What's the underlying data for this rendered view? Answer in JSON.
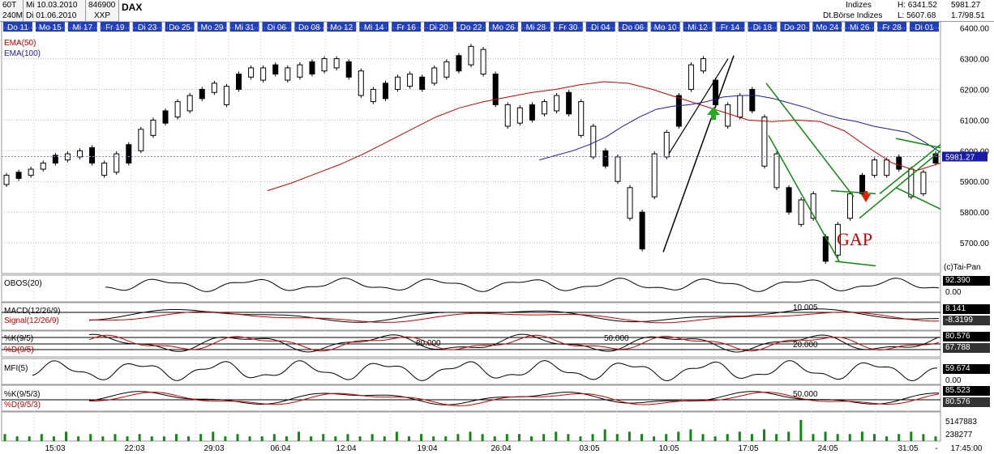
{
  "header": {
    "timeframe_1": "60T",
    "date_1": "Mi 10.03.2010",
    "code": "846900",
    "timeframe_2": "240M",
    "date_2": "Di 01.06.2010",
    "exchange": "XXP",
    "symbol": "DAX",
    "indices_label": "Indizes",
    "exchange_name": "Dt.Börse Indizes",
    "high": "H: 6341.52",
    "low": "L: 5607.68",
    "last": "5981.27",
    "change": "1.7/98.51"
  },
  "date_tabs": [
    "Do 11",
    "Mo 15",
    "Mi 17",
    "Fr 19",
    "Di 23",
    "Do 25",
    "Mo 29",
    "Mi 31",
    "Di 06",
    "Do 08",
    "Mo 12",
    "Mi 14",
    "Fr 16",
    "Di 20",
    "Do 22",
    "Mo 26",
    "Mi 28",
    "Fr 30",
    "Di 04",
    "Do 06",
    "Mo 10",
    "Mi 12",
    "Fr 14",
    "Di 18",
    "Do 20",
    "Mo 24",
    "Mi 26",
    "Fr 28",
    "Di 01"
  ],
  "x_axis_labels": [
    "15:03",
    "22:03",
    "29:03",
    "06:04",
    "12:04",
    "19:04",
    "26:04",
    "03:05",
    "10:05",
    "17:05",
    "24:05",
    "31:05",
    "-",
    "17:45:00"
  ],
  "copyright": "(c)Tai-Pan",
  "annotation": "GAP",
  "colors": {
    "candle": "#000000",
    "ema50": "#cc0000",
    "ema100": "#1a1aaa",
    "channel": "#118811",
    "tab_bg": "#1f3fbf",
    "volume": "#118811"
  },
  "legend": {
    "ema50": "EMA(50)",
    "ema100": "EMA(100)"
  },
  "indicators": [
    {
      "name": "OBOS(20)",
      "values": [
        "92.390",
        "0.00"
      ]
    },
    {
      "name": "MACD(12/26/9)",
      "name2": "Signal(12/26/9)",
      "level": "10.005",
      "values": [
        "8.141",
        "-8.3199"
      ]
    },
    {
      "name": "%K(9/5)",
      "name2": "%D(9/5)",
      "levels": [
        "80.000",
        "50.000",
        "20.000"
      ],
      "values": [
        "80.576",
        "67.788"
      ]
    },
    {
      "name": "MFI(5)",
      "values": [
        "59.674",
        "0.00"
      ]
    },
    {
      "name": "%K(9/5/3)",
      "name2": "%D(9/5/3)",
      "level": "50.000",
      "values": [
        "85.523",
        "80.576"
      ]
    },
    {
      "name": "Volume",
      "values": [
        "5147883",
        "238277"
      ]
    }
  ],
  "chart_data": {
    "type": "candlestick",
    "title": "DAX",
    "y_ticks": [
      5700,
      5800,
      5900,
      6000,
      6100,
      6200,
      6300,
      6400
    ],
    "ylim": [
      5600,
      6420
    ],
    "ylabel": "",
    "series": [
      {
        "name": "EMA(50)",
        "values": [
          5870,
          5895,
          5925,
          5955,
          5990,
          6030,
          6070,
          6110,
          6140,
          6160,
          6175,
          6190,
          6200,
          6215,
          6225,
          6220,
          6200,
          6175,
          6150,
          6125,
          6100,
          6095,
          6100,
          6095,
          6065,
          6010,
          5960,
          5935,
          5960
        ]
      },
      {
        "name": "EMA(100)",
        "values": [
          5970,
          5985,
          6000,
          6020,
          6045,
          6080,
          6110,
          6135,
          6145,
          6150,
          6160,
          6175,
          6180,
          6180,
          6170,
          6155,
          6140,
          6120,
          6105,
          6095,
          6080,
          6070,
          6060,
          6030,
          5995
        ]
      }
    ],
    "candles": [
      [
        5890,
        5920
      ],
      [
        5910,
        5930
      ],
      [
        5920,
        5940
      ],
      [
        5940,
        5960
      ],
      [
        5960,
        5985
      ],
      [
        5970,
        5990
      ],
      [
        5980,
        6000
      ],
      [
        5960,
        6010
      ],
      [
        5920,
        5960
      ],
      [
        5930,
        5990
      ],
      [
        5960,
        6020
      ],
      [
        6000,
        6070
      ],
      [
        6050,
        6100
      ],
      [
        6090,
        6130
      ],
      [
        6110,
        6160
      ],
      [
        6130,
        6180
      ],
      [
        6170,
        6200
      ],
      [
        6190,
        6220
      ],
      [
        6150,
        6210
      ],
      [
        6200,
        6250
      ],
      [
        6240,
        6270
      ],
      [
        6230,
        6270
      ],
      [
        6250,
        6280
      ],
      [
        6230,
        6270
      ],
      [
        6240,
        6280
      ],
      [
        6250,
        6290
      ],
      [
        6260,
        6300
      ],
      [
        6270,
        6300
      ],
      [
        6240,
        6290
      ],
      [
        6180,
        6260
      ],
      [
        6160,
        6200
      ],
      [
        6170,
        6220
      ],
      [
        6200,
        6240
      ],
      [
        6210,
        6250
      ],
      [
        6200,
        6240
      ],
      [
        6220,
        6270
      ],
      [
        6240,
        6290
      ],
      [
        6260,
        6310
      ],
      [
        6280,
        6340
      ],
      [
        6250,
        6330
      ],
      [
        6150,
        6250
      ],
      [
        6080,
        6150
      ],
      [
        6090,
        6140
      ],
      [
        6100,
        6150
      ],
      [
        6120,
        6160
      ],
      [
        6130,
        6180
      ],
      [
        6120,
        6190
      ],
      [
        6050,
        6160
      ],
      [
        5980,
        6080
      ],
      [
        5950,
        6000
      ],
      [
        5900,
        5980
      ],
      [
        5780,
        5880
      ],
      [
        5680,
        5800
      ],
      [
        5850,
        5990
      ],
      [
        5980,
        6060
      ],
      [
        6080,
        6180
      ],
      [
        6200,
        6280
      ],
      [
        6260,
        6300
      ],
      [
        6150,
        6230
      ],
      [
        6080,
        6150
      ],
      [
        6110,
        6180
      ],
      [
        6130,
        6200
      ],
      [
        5950,
        6110
      ],
      [
        5880,
        5990
      ],
      [
        5800,
        5880
      ],
      [
        5760,
        5840
      ],
      [
        5780,
        5860
      ],
      [
        5640,
        5720
      ],
      [
        5660,
        5760
      ],
      [
        5780,
        5860
      ],
      [
        5860,
        5920
      ],
      [
        5920,
        5970
      ],
      [
        5920,
        5970
      ],
      [
        5940,
        5980
      ],
      [
        5850,
        5940
      ],
      [
        5860,
        5930
      ],
      [
        5960,
        5990
      ]
    ],
    "volume": [
      3,
      2,
      2,
      3,
      2,
      4,
      2,
      3,
      2,
      3,
      2,
      3,
      2,
      2,
      3,
      2,
      3,
      4,
      2,
      3,
      2,
      2,
      3,
      2,
      4,
      2,
      3,
      2,
      3,
      2,
      3,
      2,
      4,
      2,
      3,
      2,
      2,
      3,
      4,
      3,
      2,
      3,
      3,
      2,
      3,
      4,
      3,
      2,
      3,
      5,
      3,
      4,
      3,
      2,
      3,
      4,
      5,
      3,
      2,
      3,
      4,
      3,
      5,
      3,
      4,
      9,
      3,
      4,
      3,
      3,
      4,
      3,
      2,
      3,
      4,
      3,
      2
    ]
  }
}
